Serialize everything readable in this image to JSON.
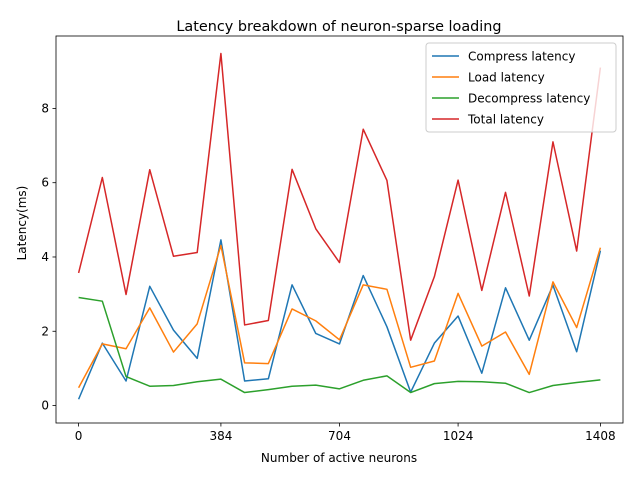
{
  "chart_data": {
    "type": "line",
    "title": "Latency breakdown of neuron-sparse loading",
    "xlabel": "Number of active neurons",
    "ylabel": "Latency(ms)",
    "xlim": [
      -61,
      1469
    ],
    "ylim": [
      -0.47,
      9.95
    ],
    "xticks": [
      0,
      384,
      704,
      1024,
      1408
    ],
    "yticks": [
      0,
      2,
      4,
      6,
      8
    ],
    "legend_position": "top-right",
    "x": [
      0,
      64,
      128,
      192,
      256,
      320,
      384,
      448,
      512,
      576,
      640,
      704,
      768,
      832,
      896,
      960,
      1024,
      1088,
      1152,
      1216,
      1280,
      1344,
      1408
    ],
    "series": [
      {
        "name": "Compress latency",
        "color": "#1f77b4",
        "values": [
          0.17,
          1.68,
          0.66,
          3.21,
          2.03,
          1.27,
          4.46,
          0.66,
          0.72,
          3.25,
          1.94,
          1.66,
          3.5,
          2.12,
          0.36,
          1.68,
          2.41,
          0.87,
          3.17,
          1.76,
          3.24,
          1.45,
          4.17
        ]
      },
      {
        "name": "Load latency",
        "color": "#ff7f0e",
        "values": [
          0.48,
          1.66,
          1.53,
          2.63,
          1.44,
          2.2,
          4.31,
          1.15,
          1.13,
          2.6,
          2.28,
          1.77,
          3.25,
          3.13,
          1.03,
          1.2,
          3.02,
          1.6,
          1.98,
          0.84,
          3.33,
          2.1,
          4.25
        ]
      },
      {
        "name": "Decompress latency",
        "color": "#2ca02c",
        "values": [
          2.91,
          2.81,
          0.78,
          0.52,
          0.54,
          0.64,
          0.71,
          0.35,
          0.43,
          0.52,
          0.55,
          0.45,
          0.68,
          0.8,
          0.35,
          0.59,
          0.65,
          0.64,
          0.6,
          0.35,
          0.54,
          0.62,
          0.69
        ]
      },
      {
        "name": "Total latency",
        "color": "#d62728",
        "values": [
          3.57,
          6.14,
          2.99,
          6.35,
          4.02,
          4.12,
          9.48,
          2.17,
          2.29,
          6.36,
          4.76,
          3.85,
          7.44,
          6.06,
          1.76,
          3.47,
          6.07,
          3.1,
          5.74,
          2.95,
          7.1,
          4.16,
          9.1
        ]
      }
    ]
  }
}
